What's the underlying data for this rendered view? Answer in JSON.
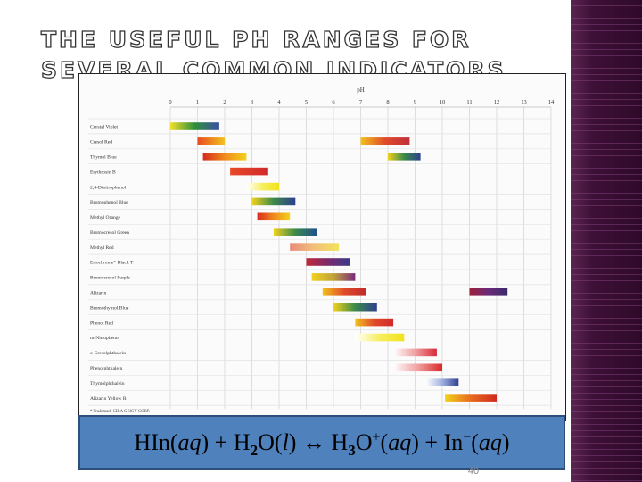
{
  "title": "THE USEFUL PH RANGES FOR SEVERAL COMMON INDICATORS",
  "equation": {
    "reactant1": "HIn(",
    "reactant1_state": "aq",
    "plus1": ") + H",
    "water_sub": "2",
    "water_mid": "O(",
    "water_state": "l",
    "arrow": ") ↔ H",
    "hydronium_sub": "3",
    "hydronium_o": "O",
    "hydronium_sup": "+",
    "hydronium_state_open": "(",
    "hydronium_state": "aq",
    "plus2": ") + In",
    "ion_sup": "−",
    "ion_state_open": "(",
    "ion_state": "aq",
    "close": ")"
  },
  "page_number": "40",
  "colors": {
    "sidebar": "#3e1038",
    "equation_box": "#4f81bd"
  },
  "chart_data": {
    "type": "range-bar",
    "axis_title": "pH",
    "xlim": [
      0,
      14
    ],
    "ticks": [
      "0",
      "1",
      "2",
      "3",
      "4",
      "5",
      "6",
      "7",
      "8",
      "9",
      "10",
      "11",
      "12",
      "13",
      "14"
    ],
    "footnote": "* Trademark CIBA GEIGY CORP.",
    "indicators": [
      {
        "name": "Crystal Violet",
        "ranges": [
          {
            "x": [
              0.0,
              1.8
            ],
            "colors": [
              "#f1e02a",
              "#2f8f3a",
              "#3b4fa6"
            ]
          }
        ]
      },
      {
        "name": "Cresol Red",
        "ranges": [
          {
            "x": [
              1.0,
              2.0
            ],
            "colors": [
              "#e84a22",
              "#f2c21c"
            ]
          },
          {
            "x": [
              7.0,
              8.8
            ],
            "colors": [
              "#f2c21c",
              "#e04a2a",
              "#c0303a"
            ]
          }
        ]
      },
      {
        "name": "Thymol Blue",
        "ranges": [
          {
            "x": [
              1.2,
              2.8
            ],
            "colors": [
              "#d32a1e",
              "#f08a1e",
              "#f2d21c"
            ]
          },
          {
            "x": [
              8.0,
              9.2
            ],
            "colors": [
              "#f2d21c",
              "#3a8a4a",
              "#2d3f8f"
            ]
          }
        ]
      },
      {
        "name": "Erythrosin B",
        "ranges": [
          {
            "x": [
              2.2,
              3.6
            ],
            "colors": [
              "#e84a2a",
              "#d02a2a"
            ]
          }
        ]
      },
      {
        "name": "2,4-Dinitrophenol",
        "ranges": [
          {
            "x": [
              2.8,
              4.0
            ],
            "colors": [
              "#ffffff",
              "#f6ee5c",
              "#f2e21c"
            ]
          }
        ]
      },
      {
        "name": "Bromophenol Blue",
        "ranges": [
          {
            "x": [
              3.0,
              4.6
            ],
            "colors": [
              "#f2d21c",
              "#3a8a4a",
              "#2d3f8f"
            ]
          }
        ]
      },
      {
        "name": "Methyl Orange",
        "ranges": [
          {
            "x": [
              3.2,
              4.4
            ],
            "colors": [
              "#d82a1e",
              "#f08a1e",
              "#f2d21c"
            ]
          }
        ]
      },
      {
        "name": "Bromocresol Green",
        "ranges": [
          {
            "x": [
              3.8,
              5.4
            ],
            "colors": [
              "#f2d21c",
              "#3a8a4a",
              "#1f4f8f"
            ]
          }
        ]
      },
      {
        "name": "Methyl Red",
        "ranges": [
          {
            "x": [
              4.4,
              6.2
            ],
            "colors": [
              "#e88a7a",
              "#f2c07a",
              "#f2e25c"
            ]
          }
        ]
      },
      {
        "name": "Eriochrome* Black T",
        "ranges": [
          {
            "x": [
              5.0,
              6.6
            ],
            "colors": [
              "#c02a3a",
              "#7a2a6a",
              "#3a3a8a"
            ]
          }
        ]
      },
      {
        "name": "Bromocresol Purple",
        "ranges": [
          {
            "x": [
              5.2,
              6.8
            ],
            "colors": [
              "#f2d21c",
              "#c0a23a",
              "#7a2a7a"
            ]
          }
        ]
      },
      {
        "name": "Alizarin",
        "ranges": [
          {
            "x": [
              5.6,
              7.2
            ],
            "colors": [
              "#f2c21c",
              "#e04a2a",
              "#c02a2a"
            ]
          },
          {
            "x": [
              11.0,
              12.4
            ],
            "colors": [
              "#a0203a",
              "#6a2a7a",
              "#3a2a6a"
            ]
          }
        ]
      },
      {
        "name": "Bromothymol Blue",
        "ranges": [
          {
            "x": [
              6.0,
              7.6
            ],
            "colors": [
              "#f2d21c",
              "#3a8a4a",
              "#2d3f8f"
            ]
          }
        ]
      },
      {
        "name": "Phenol Red",
        "ranges": [
          {
            "x": [
              6.8,
              8.2
            ],
            "colors": [
              "#f2c21c",
              "#e04a2a",
              "#d02a2a"
            ]
          }
        ]
      },
      {
        "name": "m-Nitrophenol",
        "ranges": [
          {
            "x": [
              6.8,
              8.6
            ],
            "colors": [
              "#ffffff",
              "#f6ee5c",
              "#f2e21c"
            ]
          }
        ]
      },
      {
        "name": "o-Cresolphthalein",
        "ranges": [
          {
            "x": [
              8.2,
              9.8
            ],
            "colors": [
              "#ffffff",
              "#f0a0a0",
              "#d82a3a"
            ]
          }
        ]
      },
      {
        "name": "Phenolphthalein",
        "ranges": [
          {
            "x": [
              8.2,
              10.0
            ],
            "colors": [
              "#ffffff",
              "#f0a0a0",
              "#d82a2a"
            ]
          }
        ]
      },
      {
        "name": "Thymolphthalein",
        "ranges": [
          {
            "x": [
              9.4,
              10.6
            ],
            "colors": [
              "#ffffff",
              "#a0b0e0",
              "#2d3f8f"
            ]
          }
        ]
      },
      {
        "name": "Alizarin Yellow R",
        "ranges": [
          {
            "x": [
              10.1,
              12.0
            ],
            "colors": [
              "#f2d21c",
              "#e86a1e",
              "#d02a1e"
            ]
          }
        ]
      }
    ]
  }
}
